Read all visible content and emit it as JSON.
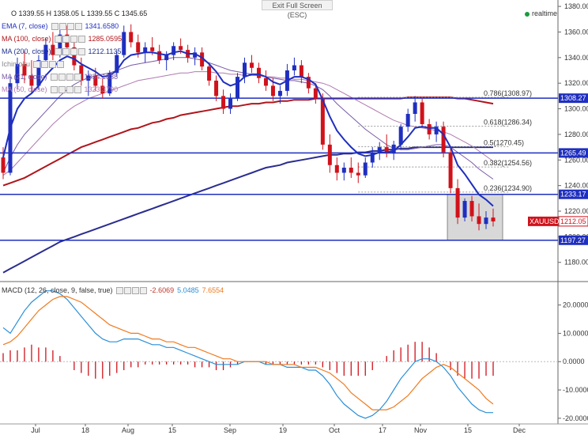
{
  "toolbar": {
    "exit_fullscreen": "Exit Full Screen (ESC)",
    "realtime": "realtime"
  },
  "ohlc": "O 1339.55  H 1358.05  L 1339.55  C 1345.65",
  "indicators": [
    {
      "label": "EMA (7, close)",
      "value": "1341.6580",
      "color": "#1f2fbf"
    },
    {
      "label": "MA (100, close)",
      "value": "1285.0595",
      "color": "#b0151b"
    },
    {
      "label": "MA (200, close)",
      "value": "1212.1135",
      "color": "#1f2f8f"
    },
    {
      "label": "Ichimoku",
      "value": "",
      "color": "#888888"
    },
    {
      "label": "MA (21, close)",
      "value": "1334.1838",
      "color": "#7a5aa8"
    },
    {
      "label": "MA (50, close)",
      "value": "1323.3790",
      "color": "#b07ab0"
    }
  ],
  "macd_header": {
    "label": "MACD (12, 26, close, 9, false, true)",
    "v1": "-2.6069",
    "v2": "5.0485",
    "v3": "7.6554"
  },
  "chart_data": [
    {
      "type": "candlestick",
      "title": "XAUUSD",
      "ylim": [
        1165,
        1385
      ],
      "y_ticks": [
        1180,
        1200,
        1220,
        1240,
        1260,
        1280,
        1300,
        1320,
        1340,
        1360,
        1380
      ],
      "x_labels": [
        "Jul",
        "18",
        "Aug",
        "15",
        "Sep",
        "19",
        "Oct",
        "17",
        "Nov",
        "15",
        "Dec"
      ],
      "price_tags": [
        {
          "value": 1308.27,
          "label": "1308.27"
        },
        {
          "value": 1265.49,
          "label": "1265.49"
        },
        {
          "value": 1233.17,
          "label": "1233.17"
        },
        {
          "value": 1212.05,
          "label": "1212.05",
          "name": "XAUUSD"
        },
        {
          "value": 1197.27,
          "label": "1197.27"
        }
      ],
      "fibonacci": [
        {
          "ratio": "0.786",
          "value": 1308.97,
          "label": "0.786(1308.97)"
        },
        {
          "ratio": "0.618",
          "value": 1286.34,
          "label": "0.618(1286.34)"
        },
        {
          "ratio": "0.5",
          "value": 1270.45,
          "label": "0.5(1270.45)"
        },
        {
          "ratio": "0.382",
          "value": 1254.56,
          "label": "0.382(1254.56)"
        },
        {
          "ratio": "0.236",
          "value": 1234.9,
          "label": "0.236(1234.90)"
        }
      ],
      "horizontal_lines": [
        1308.27,
        1265.49,
        1233.17,
        1197.27
      ],
      "candles": [
        [
          1262,
          1270,
          1245,
          1250
        ],
        [
          1250,
          1325,
          1248,
          1320
        ],
        [
          1320,
          1340,
          1315,
          1335
        ],
        [
          1335,
          1345,
          1320,
          1326
        ],
        [
          1326,
          1338,
          1312,
          1318
        ],
        [
          1318,
          1342,
          1315,
          1338
        ],
        [
          1338,
          1355,
          1332,
          1350
        ],
        [
          1350,
          1360,
          1338,
          1342
        ],
        [
          1342,
          1362,
          1340,
          1358
        ],
        [
          1358,
          1365,
          1345,
          1348
        ],
        [
          1348,
          1352,
          1330,
          1334
        ],
        [
          1334,
          1340,
          1318,
          1322
        ],
        [
          1322,
          1330,
          1310,
          1326
        ],
        [
          1326,
          1332,
          1314,
          1318
        ],
        [
          1318,
          1324,
          1308,
          1312
        ],
        [
          1312,
          1330,
          1310,
          1328
        ],
        [
          1328,
          1345,
          1325,
          1342
        ],
        [
          1342,
          1365,
          1340,
          1360
        ],
        [
          1360,
          1366,
          1348,
          1352
        ],
        [
          1352,
          1358,
          1340,
          1344
        ],
        [
          1344,
          1352,
          1336,
          1348
        ],
        [
          1348,
          1356,
          1342,
          1345
        ],
        [
          1345,
          1350,
          1335,
          1338
        ],
        [
          1338,
          1345,
          1330,
          1342
        ],
        [
          1342,
          1352,
          1338,
          1349
        ],
        [
          1349,
          1355,
          1343,
          1346
        ],
        [
          1346,
          1350,
          1336,
          1340
        ],
        [
          1340,
          1348,
          1334,
          1344
        ],
        [
          1344,
          1348,
          1330,
          1333
        ],
        [
          1333,
          1336,
          1318,
          1322
        ],
        [
          1322,
          1326,
          1306,
          1310
        ],
        [
          1310,
          1315,
          1296,
          1300
        ],
        [
          1300,
          1312,
          1296,
          1308
        ],
        [
          1308,
          1328,
          1306,
          1325
        ],
        [
          1325,
          1340,
          1320,
          1336
        ],
        [
          1336,
          1342,
          1328,
          1332
        ],
        [
          1332,
          1336,
          1320,
          1324
        ],
        [
          1324,
          1330,
          1314,
          1318
        ],
        [
          1318,
          1324,
          1306,
          1310
        ],
        [
          1310,
          1318,
          1304,
          1314
        ],
        [
          1314,
          1335,
          1310,
          1330
        ],
        [
          1330,
          1340,
          1326,
          1334
        ],
        [
          1334,
          1338,
          1320,
          1325
        ],
        [
          1325,
          1328,
          1312,
          1316
        ],
        [
          1316,
          1320,
          1304,
          1308
        ],
        [
          1308,
          1312,
          1268,
          1272
        ],
        [
          1272,
          1280,
          1250,
          1256
        ],
        [
          1256,
          1262,
          1244,
          1250
        ],
        [
          1250,
          1258,
          1244,
          1254
        ],
        [
          1254,
          1262,
          1246,
          1250
        ],
        [
          1250,
          1258,
          1242,
          1248
        ],
        [
          1248,
          1262,
          1246,
          1258
        ],
        [
          1258,
          1270,
          1254,
          1266
        ],
        [
          1266,
          1274,
          1260,
          1270
        ],
        [
          1270,
          1280,
          1262,
          1265
        ],
        [
          1265,
          1275,
          1260,
          1272
        ],
        [
          1272,
          1288,
          1268,
          1286
        ],
        [
          1286,
          1300,
          1282,
          1296
        ],
        [
          1296,
          1310,
          1290,
          1305
        ],
        [
          1305,
          1308,
          1285,
          1288
        ],
        [
          1288,
          1292,
          1276,
          1280
        ],
        [
          1280,
          1290,
          1274,
          1286
        ],
        [
          1286,
          1290,
          1262,
          1266
        ],
        [
          1266,
          1270,
          1234,
          1238
        ],
        [
          1238,
          1245,
          1210,
          1215
        ],
        [
          1215,
          1230,
          1212,
          1228
        ],
        [
          1228,
          1232,
          1212,
          1216
        ],
        [
          1216,
          1226,
          1205,
          1210
        ],
        [
          1210,
          1220,
          1206,
          1215
        ],
        [
          1215,
          1222,
          1208,
          1212
        ]
      ],
      "ema_7": [
        1262,
        1285,
        1300,
        1308,
        1312,
        1318,
        1326,
        1332,
        1338,
        1341,
        1339,
        1335,
        1332,
        1329,
        1325,
        1326,
        1330,
        1338,
        1342,
        1343,
        1344,
        1344,
        1343,
        1342,
        1344,
        1345,
        1343,
        1343,
        1340,
        1335,
        1329,
        1321,
        1318,
        1320,
        1325,
        1327,
        1327,
        1325,
        1321,
        1319,
        1322,
        1325,
        1325,
        1323,
        1319,
        1307,
        1294,
        1283,
        1276,
        1270,
        1265,
        1263,
        1264,
        1266,
        1266,
        1267,
        1272,
        1278,
        1285,
        1286,
        1285,
        1285,
        1280,
        1270,
        1256,
        1249,
        1241,
        1233,
        1229,
        1224
      ],
      "ma_21": [
        1250,
        1262,
        1272,
        1280,
        1286,
        1292,
        1298,
        1304,
        1310,
        1315,
        1319,
        1322,
        1324,
        1326,
        1327,
        1328,
        1330,
        1332,
        1334,
        1335,
        1336,
        1337,
        1338,
        1339,
        1340,
        1340,
        1340,
        1339,
        1338,
        1336,
        1334,
        1332,
        1330,
        1329,
        1328,
        1327,
        1326,
        1325,
        1324,
        1323,
        1322,
        1322,
        1321,
        1320,
        1318,
        1315,
        1310,
        1304,
        1299,
        1294,
        1289,
        1284,
        1280,
        1276,
        1272,
        1269,
        1268,
        1268,
        1269,
        1270,
        1271,
        1272,
        1272,
        1270,
        1266,
        1262,
        1258,
        1253,
        1249,
        1245
      ],
      "ma_50": [
        1248,
        1252,
        1258,
        1264,
        1270,
        1276,
        1282,
        1288,
        1293,
        1298,
        1302,
        1305,
        1308,
        1310,
        1312,
        1314,
        1316,
        1318,
        1320,
        1322,
        1323,
        1324,
        1325,
        1326,
        1327,
        1328,
        1328,
        1329,
        1329,
        1329,
        1328,
        1328,
        1327,
        1327,
        1326,
        1326,
        1326,
        1325,
        1325,
        1324,
        1324,
        1323,
        1323,
        1322,
        1321,
        1320,
        1318,
        1315,
        1312,
        1309,
        1306,
        1303,
        1300,
        1297,
        1294,
        1291,
        1289,
        1287,
        1286,
        1285,
        1284,
        1283,
        1282,
        1280,
        1277,
        1274,
        1271,
        1267,
        1263,
        1259
      ],
      "ma_100": [
        1240,
        1242,
        1244,
        1246,
        1249,
        1252,
        1255,
        1258,
        1261,
        1264,
        1267,
        1270,
        1272,
        1274,
        1276,
        1278,
        1280,
        1282,
        1284,
        1285,
        1287,
        1289,
        1290,
        1292,
        1293,
        1295,
        1296,
        1297,
        1298,
        1299,
        1300,
        1301,
        1302,
        1302,
        1303,
        1304,
        1304,
        1305,
        1305,
        1306,
        1306,
        1307,
        1307,
        1307,
        1308,
        1308,
        1308,
        1308,
        1308,
        1308,
        1308,
        1308,
        1308,
        1308,
        1308,
        1308,
        1308,
        1309,
        1309,
        1309,
        1309,
        1309,
        1309,
        1309,
        1308,
        1308,
        1307,
        1306,
        1305,
        1304
      ],
      "ma_200": [
        1172,
        1175,
        1178,
        1181,
        1184,
        1187,
        1190,
        1193,
        1196,
        1198,
        1200,
        1202,
        1204,
        1206,
        1208,
        1210,
        1212,
        1214,
        1216,
        1218,
        1220,
        1222,
        1224,
        1226,
        1228,
        1230,
        1232,
        1234,
        1236,
        1238,
        1240,
        1242,
        1244,
        1246,
        1248,
        1250,
        1252,
        1254,
        1255,
        1256,
        1258,
        1259,
        1260,
        1261,
        1262,
        1263,
        1264,
        1264,
        1265,
        1265,
        1266,
        1266,
        1267,
        1267,
        1268,
        1268,
        1269,
        1269,
        1270,
        1270,
        1270,
        1270,
        1270,
        1270,
        1270,
        1270,
        1270,
        1270,
        1270,
        1270
      ],
      "shaded_box": {
        "y_top": 1233.17,
        "y_bottom": 1197.27,
        "start_index": 63,
        "end_index": 69
      }
    },
    {
      "type": "line",
      "title": "MACD (12, 26, close, 9, false, true)",
      "ylim": [
        -22,
        28
      ],
      "y_ticks": [
        20,
        10,
        0,
        -10,
        -20
      ],
      "y_tick_labels": [
        "20.0000",
        "10.0000",
        "0.0000",
        "-10.0000",
        "-20.0000"
      ],
      "series": [
        {
          "name": "MACD",
          "color": "#2a8fd8",
          "values": [
            12,
            10,
            14,
            18,
            21,
            23,
            25,
            25,
            24,
            22,
            19,
            16,
            13,
            10,
            8,
            7,
            7,
            8,
            8,
            8,
            7,
            6,
            6,
            5,
            5,
            4,
            3,
            2,
            1,
            0,
            -1,
            -1,
            -1,
            -1,
            0,
            0,
            0,
            -1,
            -1,
            -1,
            -2,
            -2,
            -2,
            -3,
            -3,
            -5,
            -8,
            -12,
            -15,
            -17,
            -19,
            -20,
            -19,
            -17,
            -14,
            -10,
            -6,
            -3,
            0,
            1,
            1,
            0,
            -2,
            -5,
            -9,
            -12,
            -15,
            -17,
            -18,
            -18
          ]
        },
        {
          "name": "Signal",
          "color": "#f07a1e",
          "values": [
            6,
            7,
            9,
            12,
            15,
            18,
            20,
            22,
            23,
            23,
            22,
            21,
            19,
            17,
            15,
            13,
            12,
            11,
            10,
            10,
            9,
            8,
            8,
            7,
            7,
            6,
            5,
            5,
            4,
            3,
            2,
            1,
            1,
            0,
            0,
            0,
            0,
            0,
            -1,
            -1,
            -1,
            -1,
            -2,
            -2,
            -2,
            -3,
            -4,
            -6,
            -8,
            -11,
            -13,
            -15,
            -17,
            -17,
            -17,
            -16,
            -14,
            -12,
            -9,
            -6,
            -4,
            -2,
            -1,
            -2,
            -4,
            -6,
            -8,
            -10,
            -13,
            -15
          ]
        }
      ],
      "histogram": [
        3,
        4,
        4,
        5,
        6,
        5,
        5,
        4,
        2,
        0,
        -3,
        -4,
        -5,
        -6,
        -6,
        -5,
        -4,
        -3,
        -2,
        -2,
        -1,
        -1,
        -1,
        -1,
        -1,
        -1,
        -1,
        -2,
        -2,
        -2,
        -3,
        -3,
        -2,
        -1,
        0,
        0,
        0,
        -1,
        -1,
        -1,
        -1,
        -1,
        -1,
        -1,
        -1,
        -2,
        -3,
        -4,
        -5,
        -5,
        -5,
        -5,
        -3,
        0,
        2,
        4,
        5,
        6,
        7,
        7,
        5,
        3,
        0,
        -3,
        -5,
        -6,
        -6,
        -6,
        -5,
        -5
      ],
      "x_labels": [
        "Jul",
        "18",
        "Aug",
        "15",
        "Sep",
        "19",
        "Oct",
        "17",
        "Nov",
        "15",
        "Dec"
      ]
    }
  ]
}
